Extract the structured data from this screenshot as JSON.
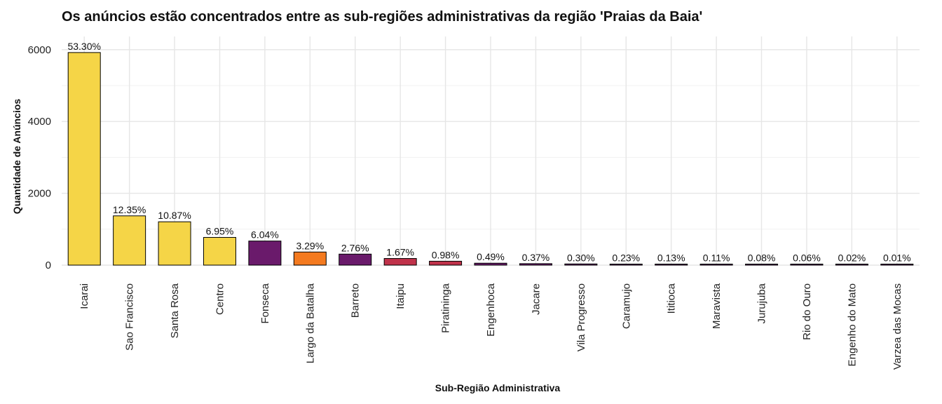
{
  "chart_data": {
    "type": "bar",
    "title": "Os anúncios estão concentrados entre as sub-regiões administrativas da região 'Praias da Baia'",
    "xlabel": "Sub-Região Administrativa",
    "ylabel": "Quantidade de Anúncios",
    "ylim": [
      0,
      6300
    ],
    "yticks": [
      0,
      2000,
      4000,
      6000
    ],
    "grid": true,
    "categories": [
      "Icarai",
      "Sao Francisco",
      "Santa Rosa",
      "Centro",
      "Fonseca",
      "Largo da Batalha",
      "Barreto",
      "Itaipu",
      "Piratininga",
      "Engenhoca",
      "Jacare",
      "Vila Progresso",
      "Caramujo",
      "Ititioca",
      "Maravista",
      "Jurujuba",
      "Rio do Ouro",
      "Engenho do Mato",
      "Varzea das Mocas"
    ],
    "values": [
      5920,
      1372,
      1207,
      772,
      671,
      365,
      307,
      185,
      109,
      54,
      41,
      33,
      26,
      14,
      12,
      9,
      7,
      2,
      1
    ],
    "labels": [
      "53.30%",
      "12.35%",
      "10.87%",
      "6.95%",
      "6.04%",
      "3.29%",
      "2.76%",
      "1.67%",
      "0.98%",
      "0.49%",
      "0.37%",
      "0.30%",
      "0.23%",
      "0.13%",
      "0.11%",
      "0.08%",
      "0.06%",
      "0.02%",
      "0.01%"
    ],
    "colors": [
      "#F5D547",
      "#F5D547",
      "#F5D547",
      "#F5D547",
      "#6A1A6B",
      "#F47A1F",
      "#6A1A6B",
      "#C0324A",
      "#C0324A",
      "#6A1A6B",
      "#6A1A6B",
      "#6A1A6B",
      "#6A1A6B",
      "#6A1A6B",
      "#6A1A6B",
      "#6A1A6B",
      "#6A1A6B",
      "#6A1A6B",
      "#6A1A6B"
    ]
  }
}
